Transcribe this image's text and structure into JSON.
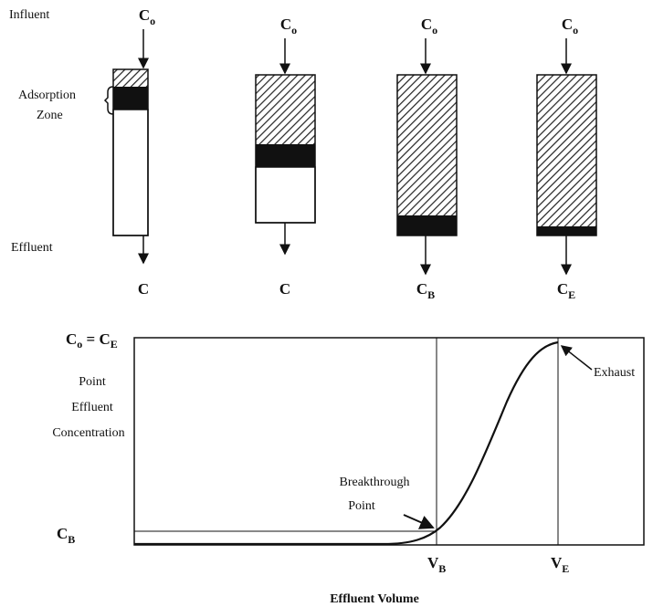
{
  "labels": {
    "influent": "Influent",
    "adsorption_zone": [
      "Adsorption",
      "Zone"
    ],
    "effluent": "Effluent"
  },
  "columns": [
    {
      "inlet": {
        "base": "C",
        "sub": "o"
      },
      "outlet": {
        "base": "C"
      }
    },
    {
      "inlet": {
        "base": "C",
        "sub": "o"
      },
      "outlet": {
        "base": "C"
      }
    },
    {
      "inlet": {
        "base": "C",
        "sub": "o"
      },
      "outlet": {
        "base": "C",
        "sub": "B"
      }
    },
    {
      "inlet": {
        "base": "C",
        "sub": "o"
      },
      "outlet": {
        "base": "C",
        "sub": "E"
      }
    }
  ],
  "graph": {
    "y_top": {
      "left": {
        "base": "C",
        "sub": "o"
      },
      "sep": "=",
      "right": {
        "base": "C",
        "sub": "E"
      }
    },
    "y_label": [
      "Point",
      "Effluent",
      "Concentration"
    ],
    "y_low": {
      "base": "C",
      "sub": "B"
    },
    "exhaust": "Exhaust",
    "breakthrough": [
      "Breakthrough",
      "Point"
    ],
    "x_marks": [
      {
        "base": "V",
        "sub": "B"
      },
      {
        "base": "V",
        "sub": "E"
      }
    ],
    "x_label": "Effluent Volume"
  }
}
